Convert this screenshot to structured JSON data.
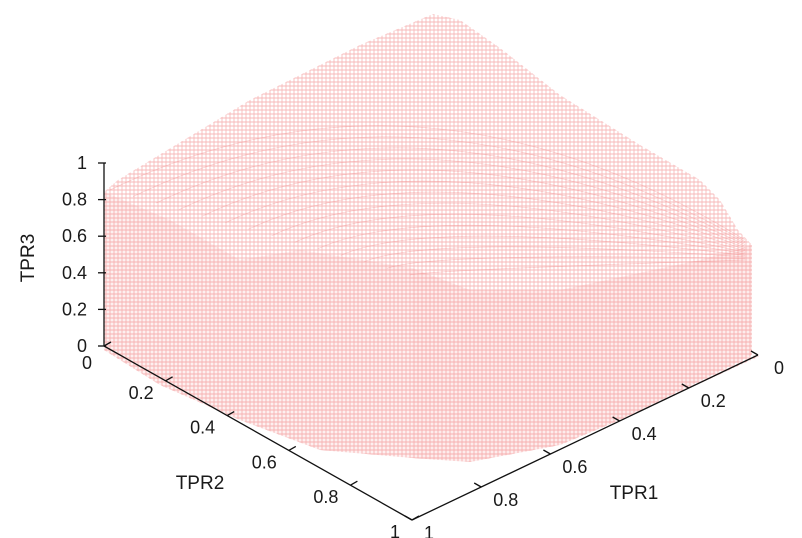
{
  "chart_data": {
    "type": "surface3d",
    "title": "",
    "xlabel": "TPR1",
    "ylabel": "TPR2",
    "zlabel": "TPR3",
    "xlim": [
      0,
      1
    ],
    "ylim": [
      0,
      1
    ],
    "zlim": [
      0,
      1
    ],
    "x_ticks": [
      "0",
      "0.2",
      "0.4",
      "0.6",
      "0.8",
      "1"
    ],
    "y_ticks": [
      "0",
      "0.2",
      "0.4",
      "0.6",
      "0.8",
      "1"
    ],
    "z_ticks": [
      "0",
      "0.2",
      "0.4",
      "0.6",
      "0.8",
      "1"
    ],
    "surface_color": "#f08080",
    "grid": false,
    "surface_description_values": {
      "tpr3_at_tpr1_0_tpr2_0": 1.0,
      "tpr3_at_tpr1_1_tpr2_0": 0.85,
      "tpr3_at_tpr1_0_tpr2_1": 0.6,
      "tpr3_at_tpr1_1_tpr2_1": 0.0,
      "tpr3_along_tpr2_0": [
        {
          "tpr1": 0.0,
          "tpr3": 1.0
        },
        {
          "tpr1": 0.2,
          "tpr3": 0.98
        },
        {
          "tpr1": 0.4,
          "tpr3": 0.95
        },
        {
          "tpr1": 0.6,
          "tpr3": 0.92
        },
        {
          "tpr1": 0.8,
          "tpr3": 0.89
        },
        {
          "tpr1": 1.0,
          "tpr3": 0.85
        }
      ],
      "tpr3_along_tpr1_0": [
        {
          "tpr2": 0.0,
          "tpr3": 1.0
        },
        {
          "tpr2": 0.2,
          "tpr3": 0.93
        },
        {
          "tpr2": 0.4,
          "tpr3": 0.85
        },
        {
          "tpr2": 0.6,
          "tpr3": 0.78
        },
        {
          "tpr2": 0.8,
          "tpr3": 0.69
        },
        {
          "tpr2": 1.0,
          "tpr3": 0.6
        }
      ]
    }
  }
}
